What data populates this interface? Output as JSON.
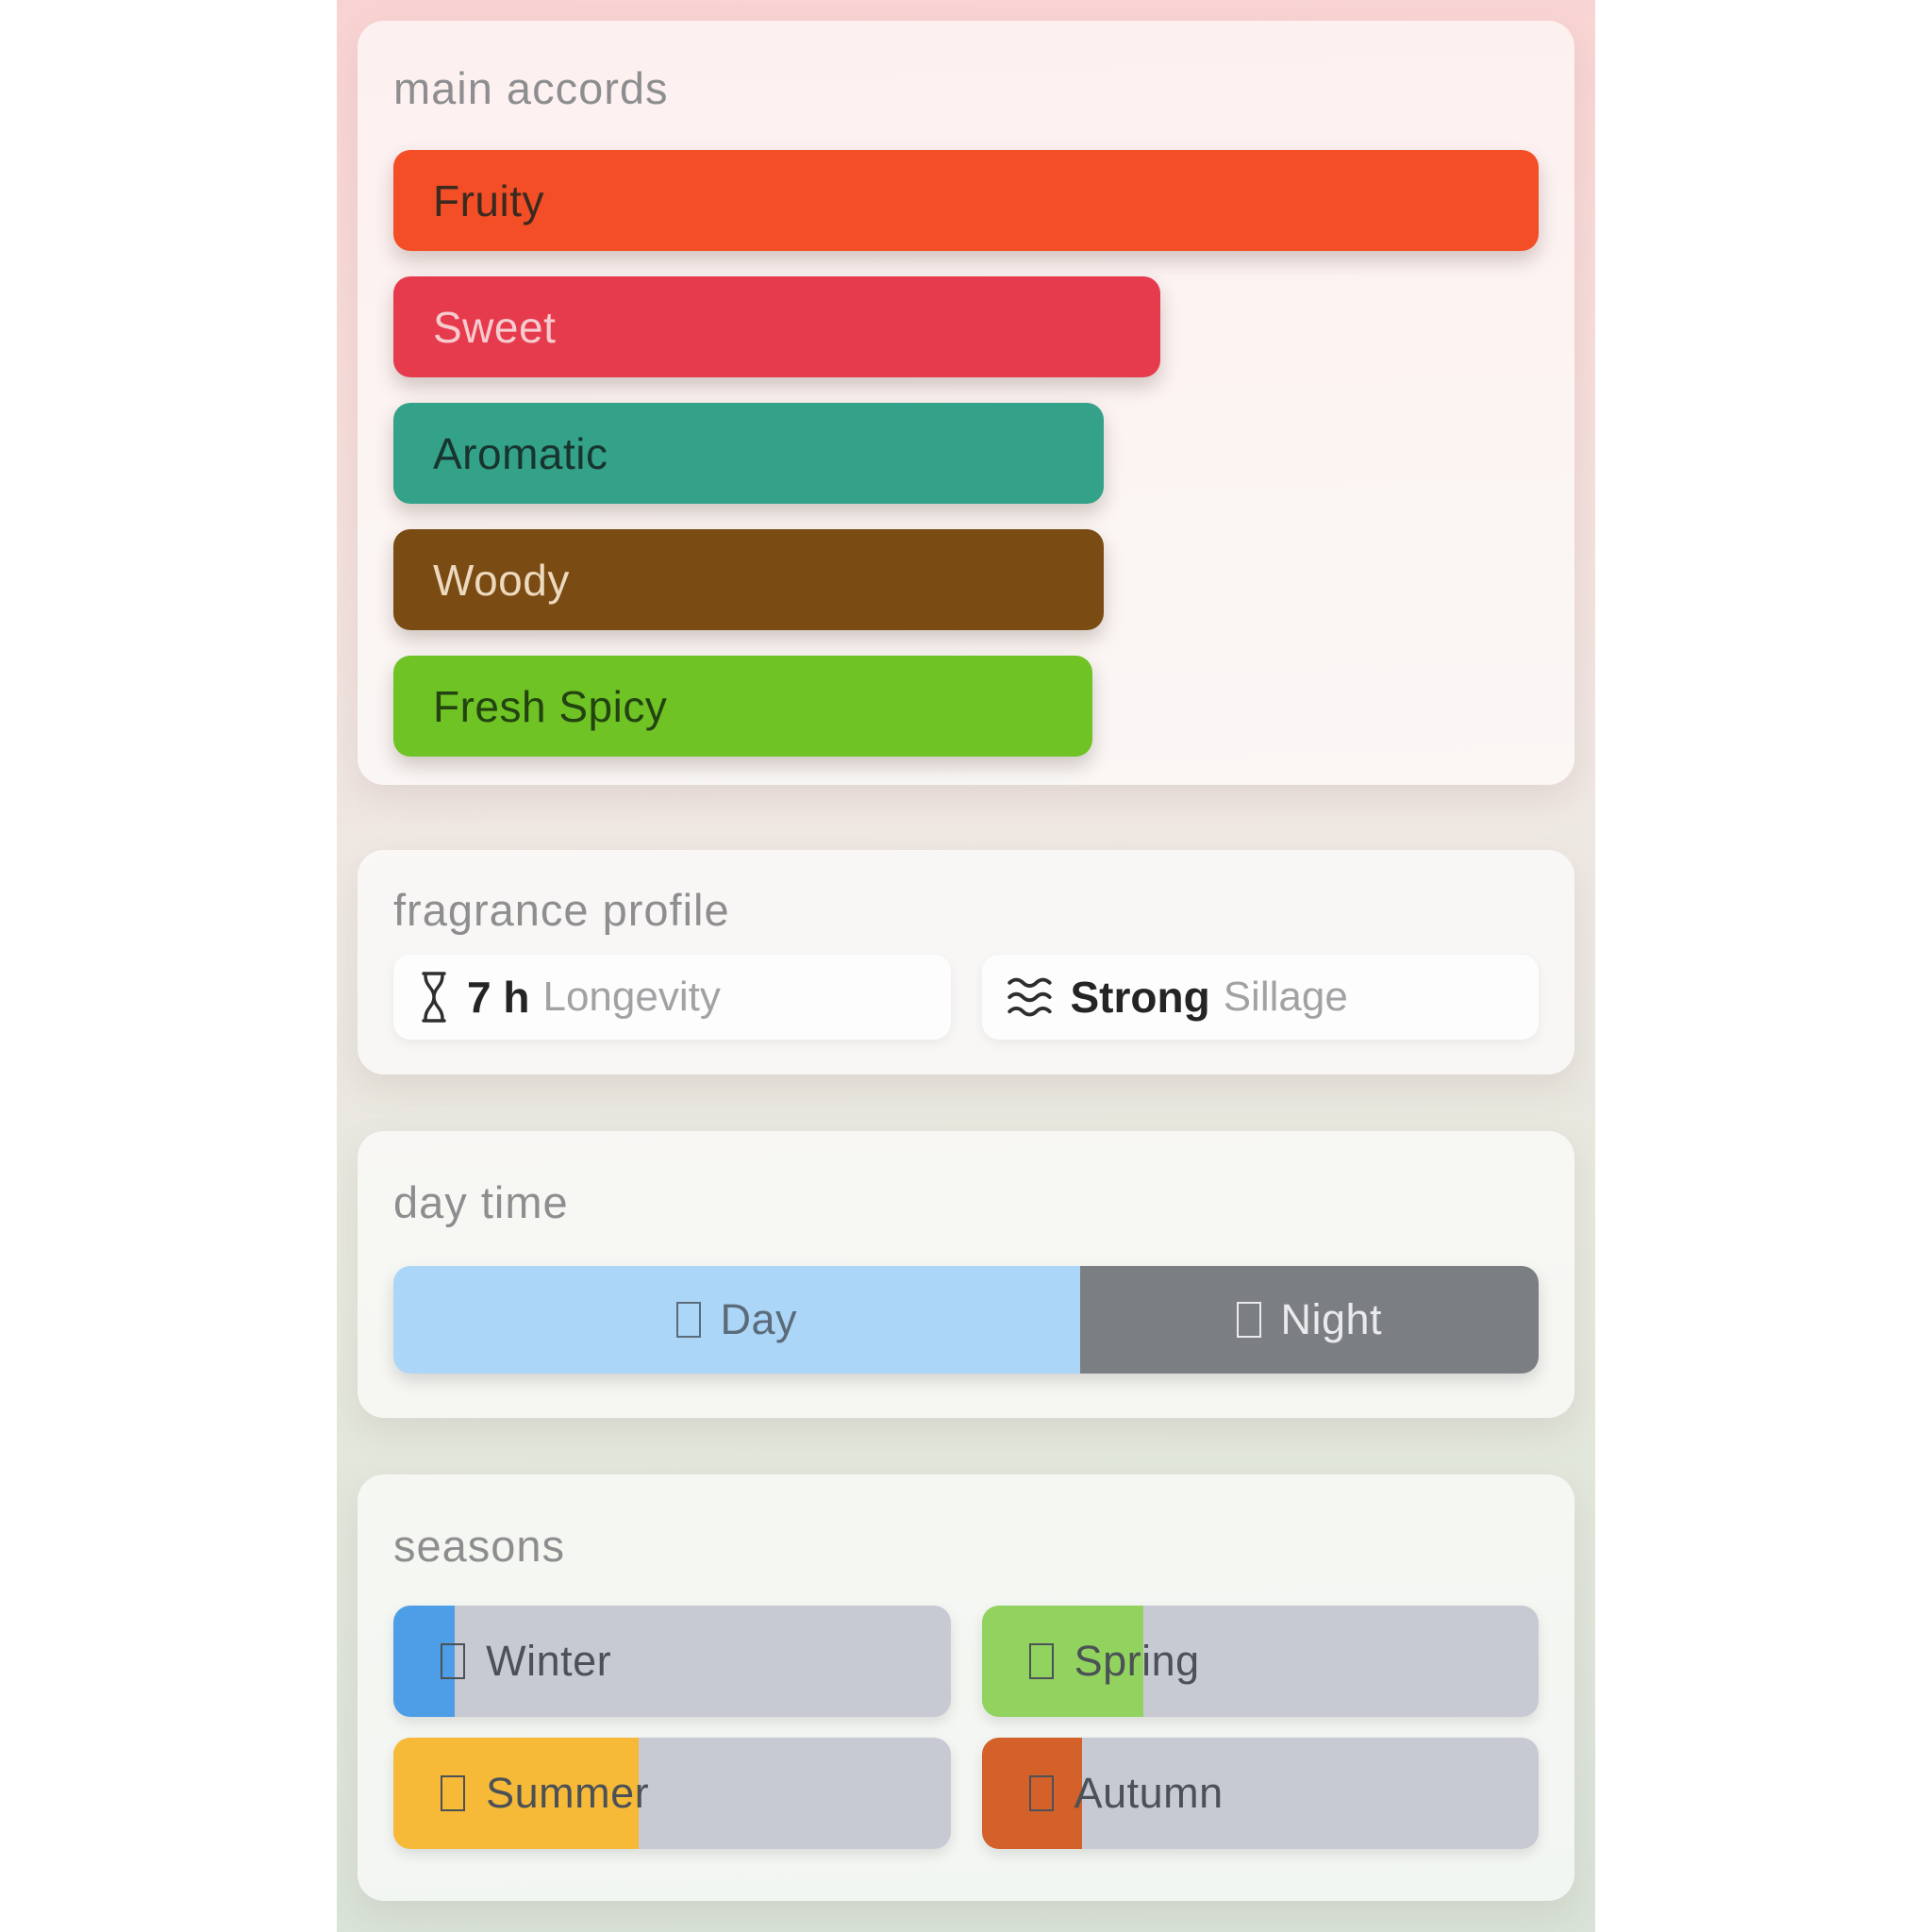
{
  "background": {
    "page_margin_color": "#ffffff",
    "gradient_top_color": "#f9d3d3",
    "gradient_bottom_color": "#d9e3d8"
  },
  "sections": {
    "main_accords": {
      "title": "main accords",
      "accords": [
        {
          "label": "Fruity",
          "width_pct": 100,
          "color": "#f34e25",
          "text_color": "#3b2a20"
        },
        {
          "label": "Sweet",
          "width_pct": 67,
          "color": "#e63b4c",
          "text_color": "#f6ccd0"
        },
        {
          "label": "Aromatic",
          "width_pct": 62,
          "color": "#34a189",
          "text_color": "#17352e"
        },
        {
          "label": "Woody",
          "width_pct": 62,
          "color": "#7a4b13",
          "text_color": "#ecd9be"
        },
        {
          "label": "Fresh Spicy",
          "width_pct": 61,
          "color": "#6fc325",
          "text_color": "#234311"
        }
      ]
    },
    "fragrance_profile": {
      "title": "fragrance profile",
      "stats": [
        {
          "icon": "hourglass-icon",
          "value": "7 h",
          "label": "Longevity"
        },
        {
          "icon": "waves-icon",
          "value": "Strong",
          "label": "Sillage"
        }
      ]
    },
    "day_time": {
      "title": "day time",
      "segments": [
        {
          "label": "Day",
          "icon": "tofu",
          "width_pct": 60,
          "color": "#abd6f8",
          "text_color": "#5b6b79"
        },
        {
          "label": "Night",
          "icon": "tofu",
          "width_pct": 40,
          "color": "#7b7e82",
          "text_color": "#e9eaec"
        }
      ]
    },
    "seasons": {
      "title": "seasons",
      "track_color": "#c7cad3",
      "items": [
        {
          "label": "Winter",
          "icon": "tofu",
          "fill_pct": 11,
          "fill_color": "#4d9ee6"
        },
        {
          "label": "Spring",
          "icon": "tofu",
          "fill_pct": 29,
          "fill_color": "#92d35f"
        },
        {
          "label": "Summer",
          "icon": "tofu",
          "fill_pct": 44,
          "fill_color": "#f7ba38"
        },
        {
          "label": "Autumn",
          "icon": "tofu",
          "fill_pct": 18,
          "fill_color": "#d4602a"
        }
      ]
    }
  }
}
